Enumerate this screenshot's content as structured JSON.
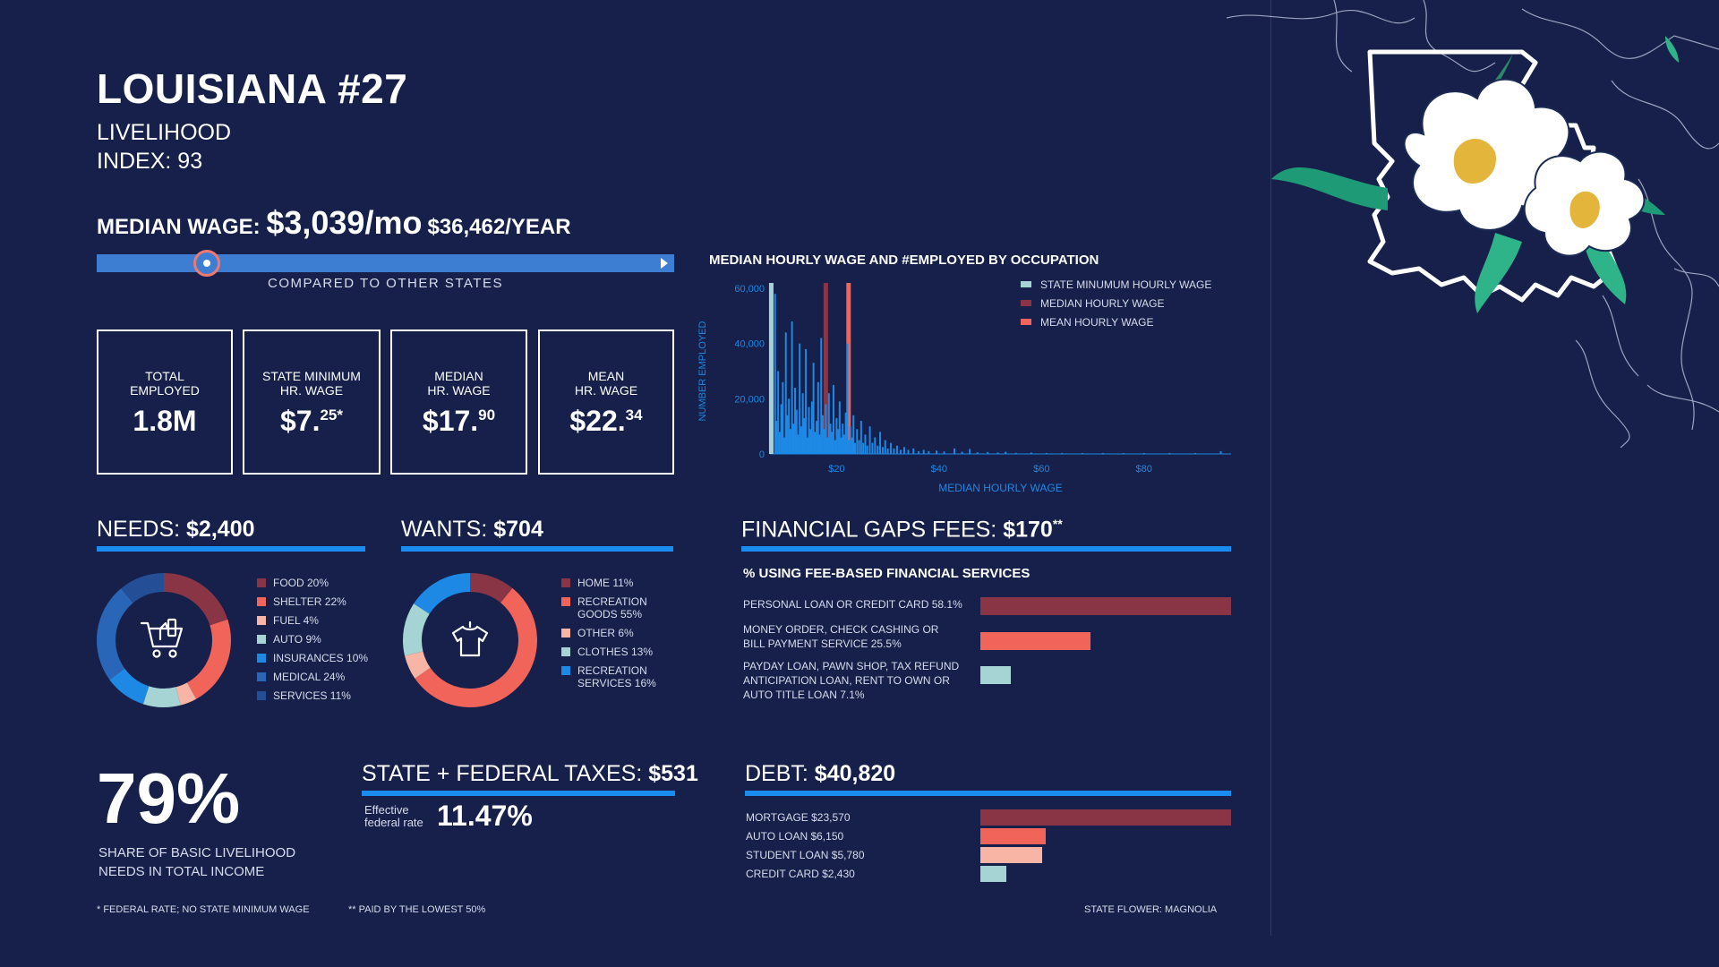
{
  "title": "LOUISIANA #27",
  "subtitle_line1": "LIVELIHOOD",
  "subtitle_line2": "INDEX: 93",
  "median_wage": {
    "label": "MEDIAN WAGE: ",
    "monthly": "$3,039/mo",
    "yearly": "$36,462/YEAR",
    "compare_label": "COMPARED TO OTHER STATES",
    "position_fraction": 0.19
  },
  "stats": [
    {
      "label1": "TOTAL",
      "label2": "EMPLOYED",
      "main": "1.8M",
      "sup": ""
    },
    {
      "label1": "STATE MINIMUM",
      "label2": "HR. WAGE",
      "main": "$7.",
      "sup": "25*"
    },
    {
      "label1": "MEDIAN",
      "label2": "HR. WAGE",
      "main": "$17.",
      "sup": "90"
    },
    {
      "label1": "MEAN",
      "label2": "HR. WAGE",
      "main": "$22.",
      "sup": "34"
    }
  ],
  "needs": {
    "label": "NEEDS: ",
    "value": "$2,400",
    "icon": "shopping-cart-icon",
    "legend": [
      "FOOD 20%",
      "SHELTER 22%",
      "FUEL 4%",
      "AUTO 9%",
      "INSURANCES 10%",
      "MEDICAL 24%",
      "SERVICES 11%"
    ]
  },
  "wants": {
    "label": "WANTS: ",
    "value": "$704",
    "icon": "shirt-icon",
    "legend": [
      {
        "line1": "HOME 11%",
        "line2": ""
      },
      {
        "line1": "RECREATION",
        "line2": "GOODS 55%"
      },
      {
        "line1": "OTHER 6%",
        "line2": ""
      },
      {
        "line1": "CLOTHES 13%",
        "line2": ""
      },
      {
        "line1": "RECREATION",
        "line2": "SERVICES 16%"
      }
    ]
  },
  "fees": {
    "label": "FINANCIAL GAPS FEES: ",
    "value": "$170",
    "value_sup": "**",
    "subtitle": "% USING FEE-BASED FINANCIAL SERVICES",
    "rows": [
      {
        "line1": "PERSONAL LOAN OR CREDIT CARD 58.1%",
        "line2": "",
        "line3": ""
      },
      {
        "line1": "MONEY ORDER, CHECK CASHING OR",
        "line2": "BILL PAYMENT SERVICE 25.5%",
        "line3": ""
      },
      {
        "line1": "PAYDAY LOAN, PAWN SHOP, TAX REFUND",
        "line2": "ANTICIPATION LOAN, RENT TO OWN OR",
        "line3": "AUTO TITLE LOAN 7.1%"
      }
    ]
  },
  "share": {
    "value": "79%",
    "note_line1": "SHARE OF BASIC LIVELIHOOD",
    "note_line2": "NEEDS IN TOTAL INCOME"
  },
  "taxes": {
    "label": "STATE + FEDERAL TAXES: ",
    "value": "$531",
    "eff_line1": "Effective",
    "eff_line2": "federal rate",
    "eff_value": "11.47%"
  },
  "debt": {
    "label": "DEBT: ",
    "value": "$40,820",
    "rows": [
      "MORTGAGE $23,570",
      "AUTO LOAN $6,150",
      "STUDENT LOAN $5,780",
      "CREDIT CARD $2,430"
    ]
  },
  "footnotes": {
    "left1": "* FEDERAL RATE; NO STATE MINIMUM WAGE",
    "left2": "** PAID BY THE LOWEST 50%",
    "right": "STATE FLOWER: MAGNOLIA"
  },
  "colors": {
    "background": "#16204a",
    "accent_blue": "#1a8cf0",
    "dark_red": "#8a3546",
    "coral": "#f0645a",
    "light_coral": "#f8b4a4",
    "light_teal": "#a6d4d4",
    "blue": "#1e88e5",
    "mid_blue": "#2a66b8",
    "navy_blue": "#244f96"
  },
  "chart_data": [
    {
      "type": "bar",
      "title": "MEDIAN HOURLY WAGE AND #EMPLOYED BY OCCUPATION",
      "xlabel": "MEDIAN HOURLY WAGE",
      "ylabel": "NUMBER EMPLOYED",
      "xlim": [
        7,
        97
      ],
      "ylim": [
        0,
        60000
      ],
      "x_ticks": [
        20,
        40,
        60,
        80
      ],
      "x_tick_labels": [
        "$20",
        "$40",
        "$60",
        "$80"
      ],
      "y_ticks": [
        0,
        20000,
        40000,
        60000
      ],
      "y_tick_labels": [
        "0",
        "20,000",
        "40,000",
        "60,000"
      ],
      "legend_position": "top-right",
      "reference_lines": [
        {
          "name": "STATE MINUMUM HOURLY WAGE",
          "x": 7.25,
          "color": "#a6d4d4"
        },
        {
          "name": "MEDIAN HOURLY WAGE",
          "x": 17.9,
          "color": "#8a3546"
        },
        {
          "name": "MEAN HOURLY WAGE",
          "x": 22.34,
          "color": "#f0645a"
        }
      ],
      "points": [
        [
          8.0,
          58000
        ],
        [
          8.3,
          12000
        ],
        [
          8.6,
          30000
        ],
        [
          8.9,
          8000
        ],
        [
          9.2,
          18000
        ],
        [
          9.5,
          26000
        ],
        [
          9.8,
          6000
        ],
        [
          10.1,
          44000
        ],
        [
          10.4,
          14000
        ],
        [
          10.7,
          20000
        ],
        [
          11.0,
          9000
        ],
        [
          11.3,
          48000
        ],
        [
          11.6,
          11000
        ],
        [
          11.9,
          24000
        ],
        [
          12.2,
          16000
        ],
        [
          12.5,
          7000
        ],
        [
          12.8,
          40000
        ],
        [
          13.1,
          10000
        ],
        [
          13.4,
          22000
        ],
        [
          13.7,
          13000
        ],
        [
          14.0,
          38000
        ],
        [
          14.3,
          6000
        ],
        [
          14.6,
          17000
        ],
        [
          14.9,
          9000
        ],
        [
          15.2,
          19000
        ],
        [
          15.5,
          33000
        ],
        [
          15.8,
          8000
        ],
        [
          16.1,
          12000
        ],
        [
          16.4,
          26000
        ],
        [
          16.7,
          7000
        ],
        [
          17.0,
          42000
        ],
        [
          17.3,
          14000
        ],
        [
          17.6,
          9000
        ],
        [
          17.9,
          18000
        ],
        [
          18.2,
          6000
        ],
        [
          18.5,
          22000
        ],
        [
          18.8,
          11000
        ],
        [
          19.1,
          8000
        ],
        [
          19.4,
          25000
        ],
        [
          19.7,
          5000
        ],
        [
          20.0,
          13000
        ],
        [
          20.3,
          9000
        ],
        [
          20.6,
          19000
        ],
        [
          20.9,
          6000
        ],
        [
          21.2,
          11000
        ],
        [
          21.5,
          7000
        ],
        [
          21.8,
          15000
        ],
        [
          22.1,
          40000
        ],
        [
          22.4,
          5000
        ],
        [
          22.7,
          10000
        ],
        [
          23.0,
          6000
        ],
        [
          23.3,
          14000
        ],
        [
          23.6,
          4000
        ],
        [
          24.0,
          9000
        ],
        [
          24.4,
          5000
        ],
        [
          24.8,
          12000
        ],
        [
          25.2,
          4000
        ],
        [
          25.6,
          7000
        ],
        [
          26.0,
          3000
        ],
        [
          26.5,
          10000
        ],
        [
          27.0,
          4000
        ],
        [
          27.5,
          6000
        ],
        [
          28.0,
          3000
        ],
        [
          28.5,
          8000
        ],
        [
          29.0,
          2500
        ],
        [
          29.5,
          5000
        ],
        [
          30.0,
          2000
        ],
        [
          30.6,
          4000
        ],
        [
          31.2,
          2000
        ],
        [
          31.8,
          3000
        ],
        [
          32.5,
          1500
        ],
        [
          33.2,
          2500
        ],
        [
          34.0,
          1500
        ],
        [
          35.0,
          2000
        ],
        [
          36.0,
          1000
        ],
        [
          37.0,
          1500
        ],
        [
          38.0,
          1000
        ],
        [
          39.5,
          1200
        ],
        [
          41.0,
          900
        ],
        [
          43.0,
          2000
        ],
        [
          44.5,
          800
        ],
        [
          46.0,
          1800
        ],
        [
          47.5,
          600
        ],
        [
          49.5,
          700
        ],
        [
          51.5,
          500
        ],
        [
          53.0,
          800
        ],
        [
          55.0,
          400
        ],
        [
          58.0,
          500
        ],
        [
          61.0,
          300
        ],
        [
          64.0,
          350
        ],
        [
          68.0,
          250
        ],
        [
          72.0,
          200
        ],
        [
          76.0,
          250
        ],
        [
          80.0,
          150
        ],
        [
          85.0,
          200
        ],
        [
          90.0,
          150
        ],
        [
          95.0,
          1000
        ]
      ]
    },
    {
      "type": "pie",
      "title": "",
      "labels": [
        "FOOD",
        "SHELTER",
        "FUEL",
        "AUTO",
        "INSURANCES",
        "MEDICAL",
        "SERVICES"
      ],
      "values": [
        20,
        22,
        4,
        9,
        10,
        24,
        11
      ],
      "colors": [
        "#8a3546",
        "#f0645a",
        "#f8b4a4",
        "#a6d4d4",
        "#1e88e5",
        "#2a66b8",
        "#244f96"
      ]
    },
    {
      "type": "pie",
      "title": "",
      "labels": [
        "HOME",
        "RECREATION GOODS",
        "OTHER",
        "CLOTHES",
        "RECREATION SERVICES"
      ],
      "values": [
        11,
        55,
        6,
        13,
        16
      ],
      "colors": [
        "#8a3546",
        "#f0645a",
        "#f8b4a4",
        "#a6d4d4",
        "#1e88e5"
      ]
    },
    {
      "type": "bar",
      "title": "% USING FEE-BASED FINANCIAL SERVICES",
      "categories": [
        "PERSONAL LOAN OR CREDIT CARD",
        "MONEY ORDER, CHECK CASHING OR BILL PAYMENT SERVICE",
        "PAYDAY LOAN, PAWN SHOP, TAX REFUND ANTICIPATION LOAN, RENT TO OWN OR AUTO TITLE LOAN"
      ],
      "values": [
        58.1,
        25.5,
        7.1
      ],
      "colors": [
        "#8a3546",
        "#f0645a",
        "#a6d4d4"
      ]
    },
    {
      "type": "bar",
      "title": "",
      "categories": [
        "MORTGAGE",
        "AUTO LOAN",
        "STUDENT LOAN",
        "CREDIT CARD"
      ],
      "values": [
        23570,
        6150,
        5780,
        2430
      ],
      "colors": [
        "#8a3546",
        "#f0645a",
        "#f8b4a4",
        "#a6d4d4"
      ]
    }
  ]
}
